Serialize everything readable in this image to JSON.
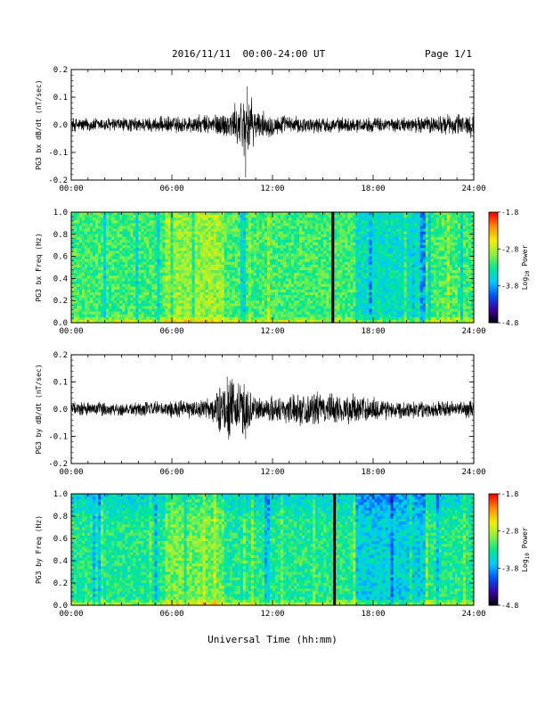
{
  "header": {
    "date_range": "2016/11/11  00:00-24:00 UT",
    "page": "Page 1/1"
  },
  "xlabel": "Universal Time (hh:mm)",
  "x_tick_labels": [
    "00:00",
    "06:00",
    "12:00",
    "18:00",
    "24:00"
  ],
  "colors": {
    "trace": "#000000",
    "colormap": [
      "#000000",
      "#3a00a0",
      "#0050ff",
      "#00c8ff",
      "#00e890",
      "#8cf040",
      "#f0f000",
      "#ff9000",
      "#ff0000"
    ]
  },
  "chart_data": [
    {
      "type": "line",
      "ylabel": "PG3 bx dB/dt (nT/sec)",
      "xlim": [
        0,
        24
      ],
      "ylim": [
        -0.2,
        0.2
      ],
      "y_tick_labels": [
        "0.2",
        "0.1",
        "0.0",
        "-0.1",
        "-0.2"
      ],
      "series": [
        {
          "envelope": [
            {
              "x": 0,
              "y": 0.03
            },
            {
              "x": 2,
              "y": 0.03
            },
            {
              "x": 4,
              "y": 0.03
            },
            {
              "x": 6,
              "y": 0.035
            },
            {
              "x": 8,
              "y": 0.04
            },
            {
              "x": 9.5,
              "y": 0.06
            },
            {
              "x": 10.5,
              "y": 0.14
            },
            {
              "x": 11,
              "y": 0.06
            },
            {
              "x": 13,
              "y": 0.035
            },
            {
              "x": 16,
              "y": 0.03
            },
            {
              "x": 20,
              "y": 0.03
            },
            {
              "x": 24,
              "y": 0.05
            }
          ],
          "min_spike": {
            "x": 10.4,
            "y": -0.19
          }
        }
      ]
    },
    {
      "type": "heatmap",
      "ylabel": "PG3 bx Freq (Hz)",
      "xlim": [
        0,
        24
      ],
      "ylim": [
        0,
        1
      ],
      "y_tick_labels": [
        "1.0",
        "0.8",
        "0.6",
        "0.4",
        "0.2",
        "0.0"
      ],
      "colorbar": {
        "label": "Log10 Power",
        "label_main": "Log",
        "label_sub": "10",
        "label_tail": " Power",
        "ticks": [
          "-1.8",
          "-2.8",
          "-3.8",
          "-4.8"
        ],
        "range": [
          -4.8,
          -1.8
        ]
      },
      "data_gap": {
        "x": 15.6
      }
    },
    {
      "type": "line",
      "ylabel": "PG3 by dB/dt (nT/sec)",
      "xlim": [
        0,
        24
      ],
      "ylim": [
        -0.2,
        0.2
      ],
      "y_tick_labels": [
        "0.2",
        "0.1",
        "0.0",
        "-0.1",
        "-0.2"
      ],
      "series": [
        {
          "envelope": [
            {
              "x": 0,
              "y": 0.03
            },
            {
              "x": 2,
              "y": 0.03
            },
            {
              "x": 4,
              "y": 0.03
            },
            {
              "x": 6,
              "y": 0.035
            },
            {
              "x": 8,
              "y": 0.04
            },
            {
              "x": 9.3,
              "y": 0.12
            },
            {
              "x": 10.3,
              "y": 0.12
            },
            {
              "x": 11,
              "y": 0.05
            },
            {
              "x": 14.5,
              "y": 0.07
            },
            {
              "x": 17,
              "y": 0.06
            },
            {
              "x": 20,
              "y": 0.035
            },
            {
              "x": 24,
              "y": 0.035
            }
          ],
          "min_spike": {
            "x": 10.4,
            "y": -0.11
          }
        }
      ]
    },
    {
      "type": "heatmap",
      "ylabel": "PG3 by Freq (Hz)",
      "xlim": [
        0,
        24
      ],
      "ylim": [
        0,
        1
      ],
      "y_tick_labels": [
        "1.0",
        "0.8",
        "0.6",
        "0.4",
        "0.2",
        "0.0"
      ],
      "colorbar": {
        "label": "Log10 Power",
        "label_main": "Log",
        "label_sub": "10",
        "label_tail": " Power",
        "ticks": [
          "-1.8",
          "-2.8",
          "-3.8",
          "-4.8"
        ],
        "range": [
          -4.8,
          -1.8
        ]
      },
      "data_gap": {
        "x": 15.7
      }
    }
  ]
}
